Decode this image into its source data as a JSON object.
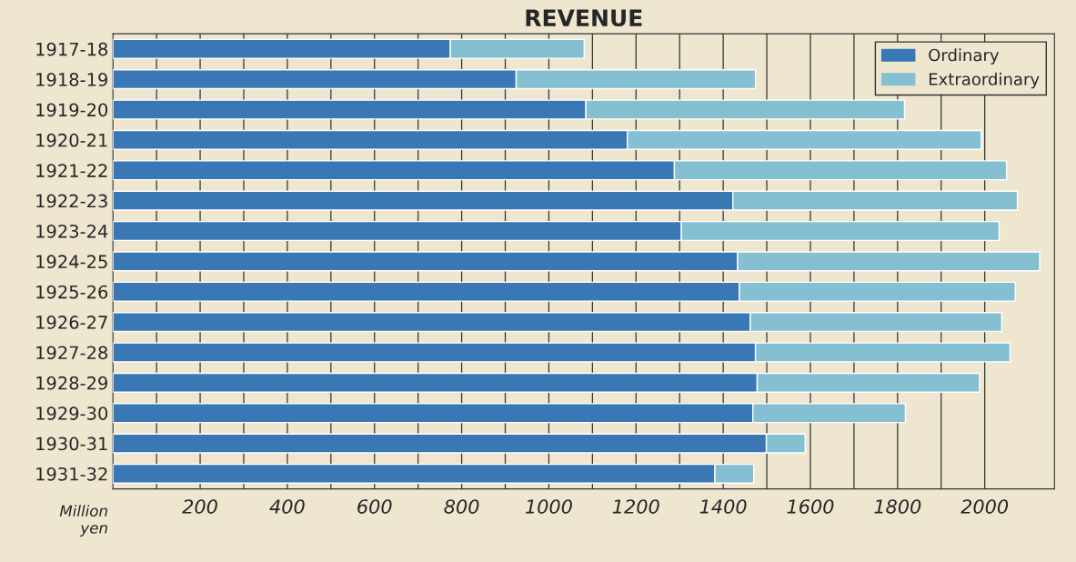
{
  "chart_data": {
    "type": "bar",
    "orientation": "horizontal",
    "stacked": true,
    "title": "REVENUE",
    "xlabel": "Million yen",
    "categories": [
      "1917-18",
      "1918-19",
      "1919-20",
      "1920-21",
      "1921-22",
      "1922-23",
      "1923-24",
      "1924-25",
      "1925-26",
      "1926-27",
      "1927-28",
      "1928-29",
      "1929-30",
      "1930-31",
      "1931-32"
    ],
    "series": [
      {
        "name": "Ordinary",
        "color": "#3a78b5",
        "values": [
          774,
          925,
          1085,
          1180,
          1288,
          1422,
          1304,
          1433,
          1437,
          1462,
          1474,
          1478,
          1468,
          1499,
          1381
        ]
      },
      {
        "name": "Extraordinary",
        "color": "#85c0d2",
        "values": [
          307,
          549,
          731,
          812,
          762,
          653,
          729,
          693,
          633,
          577,
          584,
          510,
          350,
          89,
          89
        ]
      }
    ],
    "xlim": [
      0,
      2160
    ],
    "xticks": [
      {
        "value": 100,
        "label": null
      },
      200,
      {
        "value": 300,
        "label": null
      },
      400,
      {
        "value": 500,
        "label": null
      },
      600,
      {
        "value": 700,
        "label": null
      },
      800,
      {
        "value": 900,
        "label": null
      },
      1000,
      {
        "value": 1100,
        "label": null
      },
      1200,
      {
        "value": 1300,
        "label": null
      },
      1400,
      {
        "value": 1500,
        "label": null
      },
      1600,
      {
        "value": 1700,
        "label": null
      },
      1800,
      {
        "value": 1900,
        "label": null
      },
      2000
    ],
    "grid": "x",
    "legend": "top right"
  }
}
